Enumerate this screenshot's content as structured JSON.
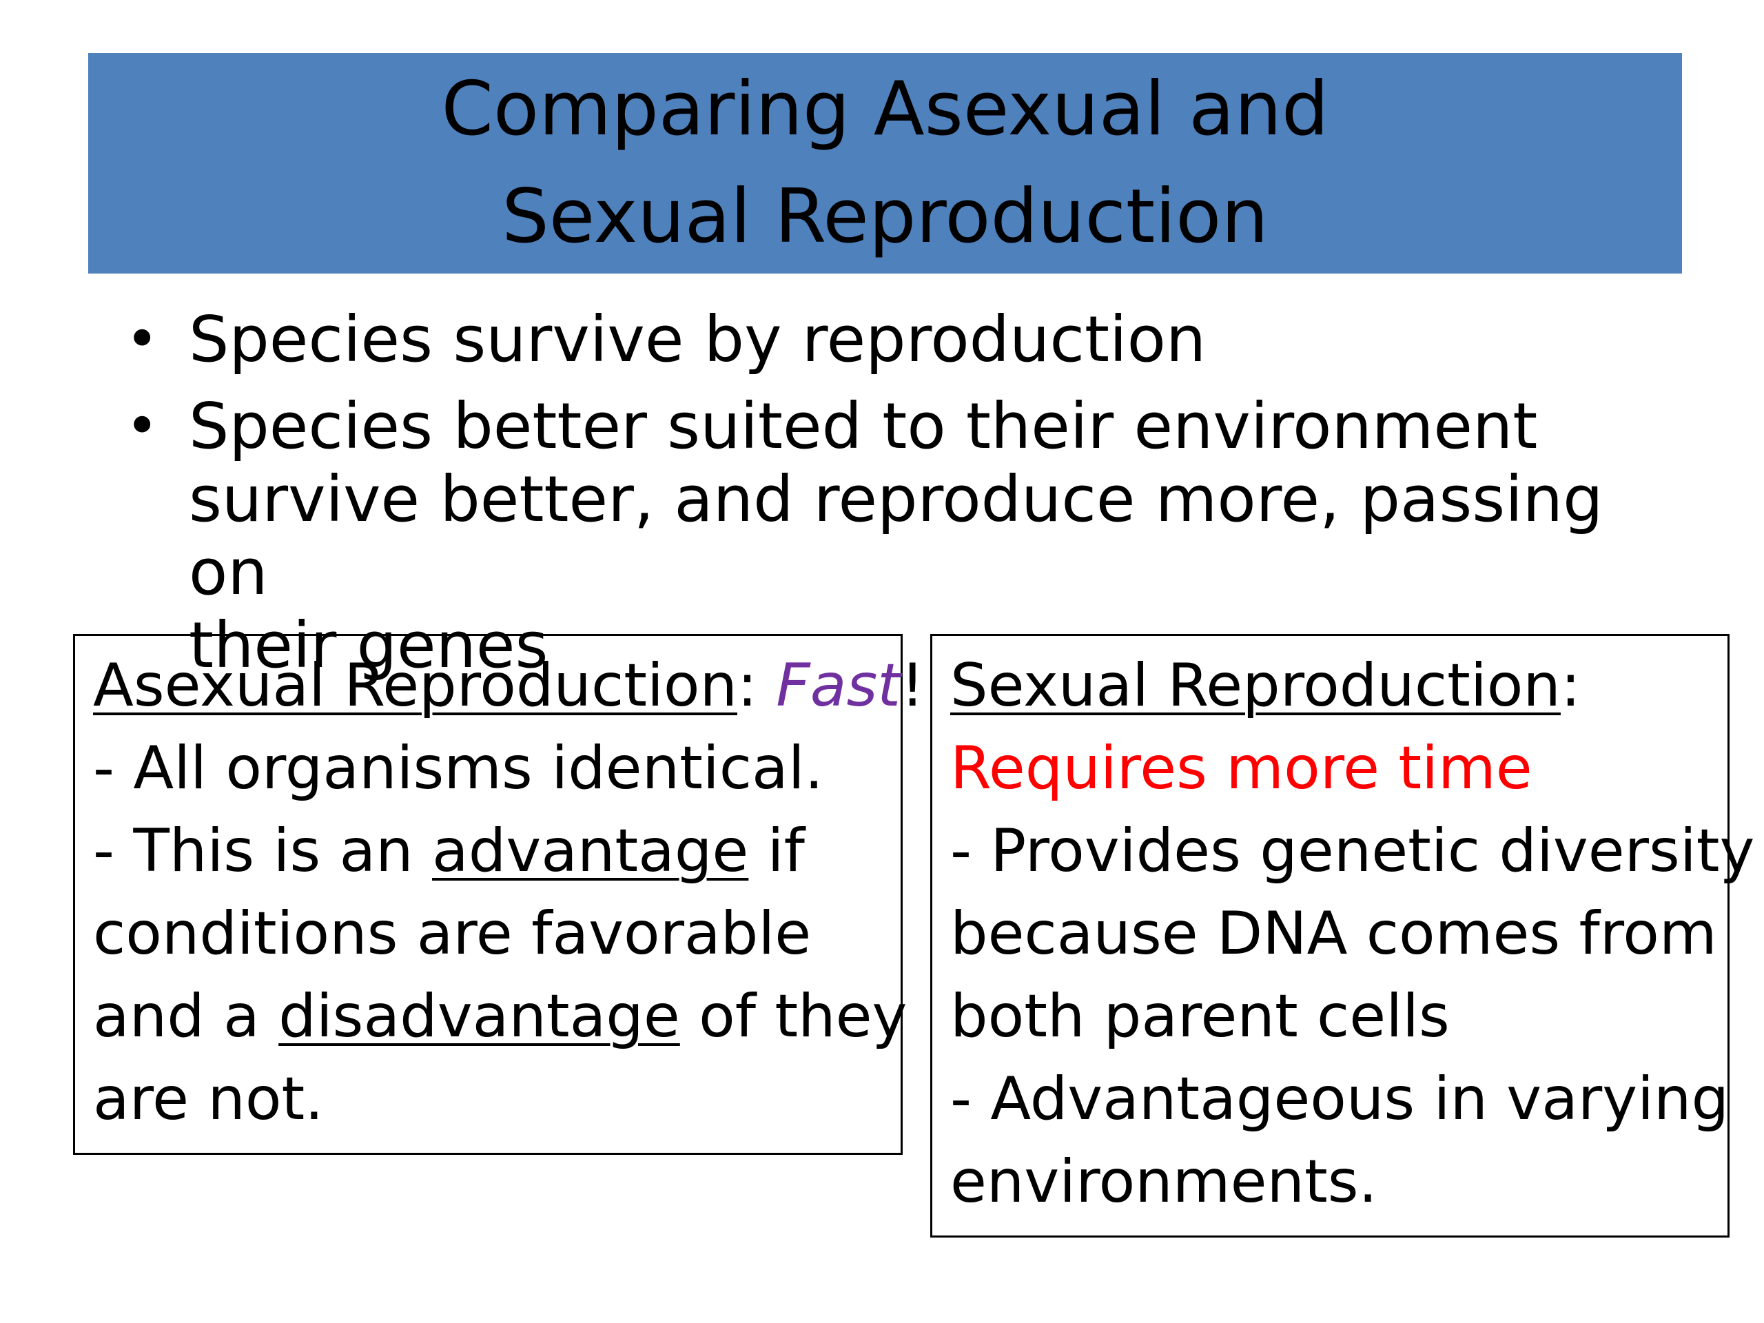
{
  "title": {
    "line1": "Comparing Asexual and",
    "line2": "Sexual Reproduction"
  },
  "bullets": [
    {
      "marker": "•",
      "lines": [
        "Species survive by reproduction"
      ]
    },
    {
      "marker": "•",
      "lines": [
        "Species better suited to their environment",
        "survive better, and reproduce more, passing on",
        "their genes"
      ]
    }
  ],
  "asexual": {
    "heading": "Asexual Reproduction",
    "colon": ": ",
    "emphasis": "Fast",
    "emphasis_color": "#7030a0",
    "exclaim": "!",
    "line1": "- All organisms identical.",
    "line2_pre": "- This is an ",
    "line2_u": "advantage",
    "line2_post": " if",
    "line3": "conditions are favorable",
    "line4_pre": "and a ",
    "line4_u": "disadvantage",
    "line4_post": " of they",
    "line5": "are not."
  },
  "sexual": {
    "heading": "Sexual Reproduction",
    "colon": ":",
    "subheading": "Requires more time",
    "subheading_color": "#ff0000",
    "line1": "- Provides genetic diversity",
    "line2": "because DNA comes from",
    "line3": "both parent cells",
    "line4": "- Advantageous in varying",
    "line5": "environments."
  },
  "colors": {
    "title_bar": "#4f81bd",
    "text": "#000000",
    "border": "#000000"
  }
}
